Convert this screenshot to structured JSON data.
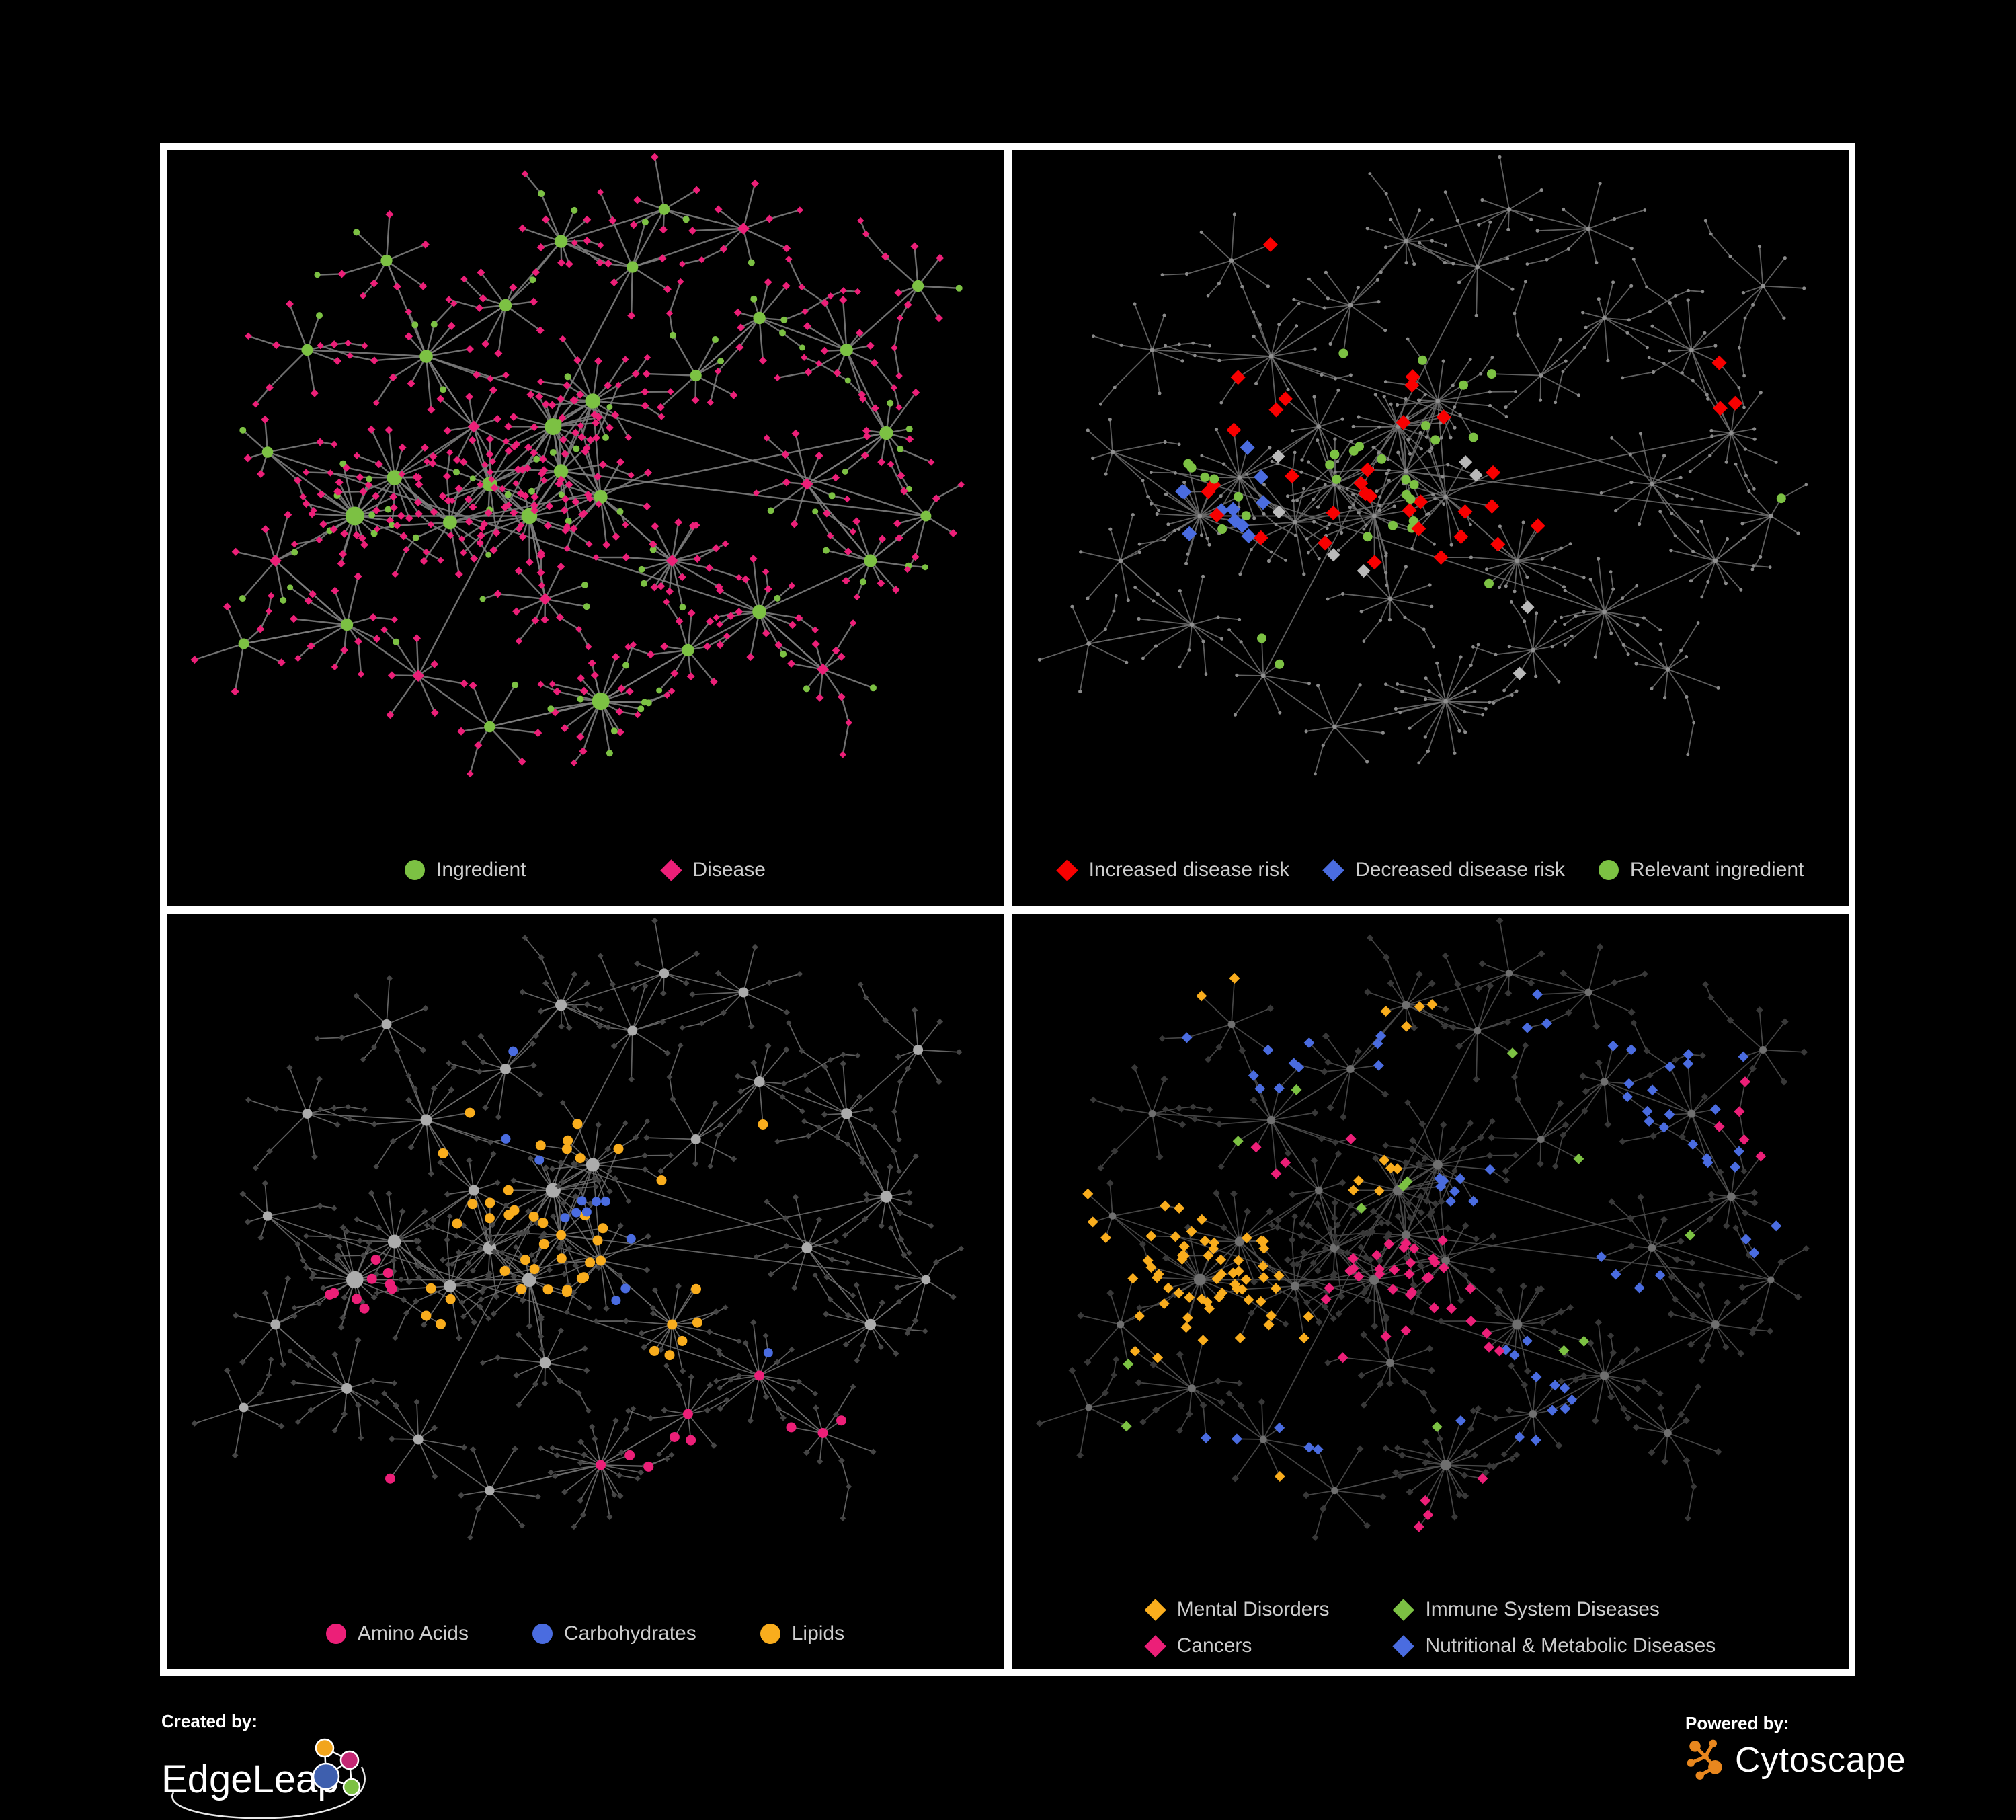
{
  "page": {
    "background": "#000000",
    "frame_color": "#ffffff"
  },
  "colors": {
    "green": "#7CC143",
    "pink": "#EC1F78",
    "red": "#F80000",
    "blue": "#4A6CE0",
    "orange": "#F9AD1D",
    "grayLight": "#B9B9B9"
  },
  "panels": [
    {
      "id": "ingredient-disease",
      "legend": [
        {
          "label": "Ingredient",
          "shape": "circle",
          "color": "green"
        },
        {
          "label": "Disease",
          "shape": "diamond",
          "color": "pink"
        }
      ],
      "style": {
        "seed": 101,
        "edge": "#7c7c7c",
        "edgeW": 2.4,
        "defaults": {
          "hub": {
            "shape": "circle",
            "color": "green",
            "size": 6.5,
            "k": 0.3,
            "max": 14,
            "altProb": 0.1,
            "altShape": "diamond",
            "altColor": "pink",
            "altSize": 9
          },
          "leaf": {
            "shape": "diamond",
            "color": "pink",
            "size": 6,
            "altProb": 0.16,
            "altShape": "circle",
            "altColor": "green",
            "altSize": 5
          },
          "sub": {
            "shape": "diamond",
            "color": "pink",
            "size": 5.2,
            "altProb": 0.1,
            "altShape": "circle",
            "altColor": "green",
            "altSize": 4.5
          }
        },
        "highlights": []
      }
    },
    {
      "id": "disease-risk",
      "legend": [
        {
          "label": "Increased disease risk",
          "shape": "diamond",
          "color": "red"
        },
        {
          "label": "Decreased disease risk",
          "shape": "diamond",
          "color": "blue"
        },
        {
          "label": "Relevant ingredient",
          "shape": "circle",
          "color": "green"
        }
      ],
      "style": {
        "seed": 202,
        "edge": "#696969",
        "edgeW": 1.8,
        "defaults": {
          "hub": {
            "shape": "circle",
            "color": "#909090",
            "size": 3.4
          },
          "leaf": {
            "shape": "circle",
            "color": "#8a8a8a",
            "size": 2.6
          },
          "sub": {
            "shape": "circle",
            "color": "#8a8a8a",
            "size": 2.4
          }
        },
        "highlights": [
          {
            "shape": "diamond",
            "color": "red",
            "size": 11,
            "count": 34,
            "regions": [
              [
                0.42,
                0.5,
                0.2
              ],
              [
                0.3,
                0.42,
                0.1
              ],
              [
                0.58,
                0.6,
                0.12
              ],
              [
                0.47,
                0.68,
                0.08
              ],
              [
                0.75,
                0.86,
                0.05
              ],
              [
                0.8,
                0.8,
                0.045
              ],
              [
                0.87,
                0.35,
                0.04
              ],
              [
                0.33,
                0.12,
                0.035
              ]
            ]
          },
          {
            "shape": "diamond",
            "color": "blue",
            "size": 11,
            "count": 11,
            "regions": [
              [
                0.235,
                0.52,
                0.075
              ],
              [
                0.26,
                0.45,
                0.04
              ],
              [
                0.915,
                0.175,
                0.04
              ]
            ]
          },
          {
            "shape": "diamond",
            "color": "grayLight",
            "size": 10,
            "count": 8,
            "regions": [
              [
                0.22,
                0.4,
                0.045
              ],
              [
                0.33,
                0.5,
                0.05
              ],
              [
                0.4,
                0.62,
                0.045
              ],
              [
                0.545,
                0.5,
                0.04
              ],
              [
                0.6,
                0.72,
                0.04
              ],
              [
                0.635,
                0.78,
                0.035
              ]
            ]
          },
          {
            "shape": "circle",
            "color": "green",
            "size": 7,
            "count": 32,
            "regions": [
              [
                0.45,
                0.45,
                0.22
              ],
              [
                0.25,
                0.5,
                0.1
              ],
              [
                0.6,
                0.68,
                0.1
              ],
              [
                0.17,
                0.33,
                0.05
              ],
              [
                0.95,
                0.5,
                0.035
              ],
              [
                0.3,
                0.75,
                0.045
              ],
              [
                0.86,
                0.87,
                0.05
              ],
              [
                0.17,
                0.6,
                0.045
              ]
            ]
          }
        ]
      }
    },
    {
      "id": "nutrient-classes",
      "legend": [
        {
          "label": "Amino Acids",
          "shape": "circle",
          "color": "pink"
        },
        {
          "label": "Carbohydrates",
          "shape": "circle",
          "color": "blue"
        },
        {
          "label": "Lipids",
          "shape": "circle",
          "color": "orange"
        }
      ],
      "style": {
        "seed": 303,
        "edge": "#6d6d6d",
        "edgeW": 1.7,
        "defaults": {
          "hub": {
            "shape": "circle",
            "color": "#acacac",
            "size": 5.5,
            "k": 0.28,
            "max": 13
          },
          "leaf": {
            "shape": "diamond",
            "color": "#454545",
            "size": 4.8
          },
          "sub": {
            "shape": "diamond",
            "color": "#454545",
            "size": 4.4
          }
        },
        "highlights": [
          {
            "shape": "circle",
            "color": "orange",
            "size": 7.5,
            "count": 46,
            "regions": [
              [
                0.47,
                0.28,
                0.1
              ],
              [
                0.43,
                0.5,
                0.1
              ],
              [
                0.52,
                0.55,
                0.08
              ],
              [
                0.63,
                0.66,
                0.055
              ],
              [
                0.33,
                0.3,
                0.06
              ],
              [
                0.5,
                0.08,
                0.025
              ],
              [
                0.68,
                0.57,
                0.06
              ],
              [
                0.3,
                0.6,
                0.05
              ],
              [
                0.6,
                0.45,
                0.06
              ],
              [
                0.75,
                0.3,
                0.035
              ]
            ]
          },
          {
            "shape": "circle",
            "color": "pink",
            "size": 7.5,
            "count": 20,
            "regions": [
              [
                0.1,
                0.63,
                0.05
              ],
              [
                0.16,
                0.17,
                0.05
              ],
              [
                0.3,
                0.3,
                0.04
              ],
              [
                0.22,
                0.56,
                0.045
              ],
              [
                0.47,
                0.78,
                0.045
              ],
              [
                0.55,
                0.85,
                0.05
              ],
              [
                0.63,
                0.8,
                0.045
              ],
              [
                0.72,
                0.72,
                0.05
              ],
              [
                0.78,
                0.78,
                0.045
              ],
              [
                0.4,
                0.87,
                0.04
              ],
              [
                0.28,
                0.87,
                0.035
              ],
              [
                0.85,
                0.3,
                0.035
              ],
              [
                0.53,
                0.64,
                0.035
              ]
            ]
          },
          {
            "shape": "circle",
            "color": "blue",
            "size": 7,
            "count": 13,
            "regions": [
              [
                0.02,
                0.28,
                0.025
              ],
              [
                0.42,
                0.35,
                0.035
              ],
              [
                0.52,
                0.47,
                0.05
              ],
              [
                0.55,
                0.52,
                0.045
              ],
              [
                0.73,
                0.63,
                0.035
              ],
              [
                0.42,
                0.2,
                0.025
              ],
              [
                0.52,
                0.57,
                0.035
              ],
              [
                0.88,
                0.8,
                0.03
              ]
            ]
          }
        ]
      }
    },
    {
      "id": "disease-classes",
      "legend": [
        {
          "label": "Mental Disorders",
          "shape": "diamond",
          "color": "orange"
        },
        {
          "label": "Immune System Diseases",
          "shape": "diamond",
          "color": "green"
        },
        {
          "label": "Cancers",
          "shape": "diamond",
          "color": "pink"
        },
        {
          "label": "Nutritional & Metabolic Diseases",
          "shape": "diamond",
          "color": "blue"
        }
      ],
      "style": {
        "seed": 404,
        "edge": "#4d4d4d",
        "edgeW": 1.7,
        "defaults": {
          "hub": {
            "shape": "circle",
            "color": "#6f6f6f",
            "size": 4.2,
            "k": 0.18,
            "max": 9
          },
          "leaf": {
            "shape": "diamond",
            "color": "#383838",
            "size": 5.4
          },
          "sub": {
            "shape": "diamond",
            "color": "#383838",
            "size": 5
          }
        },
        "highlights": [
          {
            "shape": "diamond",
            "color": "orange",
            "size": 8,
            "count": 75,
            "regions": [
              [
                0.185,
                0.55,
                0.13
              ],
              [
                0.26,
                0.52,
                0.06
              ],
              [
                0.1,
                0.45,
                0.05
              ],
              [
                0.3,
                0.62,
                0.05
              ],
              [
                0.47,
                0.12,
                0.035
              ],
              [
                0.24,
                0.1,
                0.03
              ],
              [
                0.43,
                0.4,
                0.04
              ],
              [
                0.1,
                0.85,
                0.04
              ],
              [
                0.3,
                0.88,
                0.03
              ],
              [
                0.55,
                0.7,
                0.03
              ]
            ]
          },
          {
            "shape": "diamond",
            "color": "pink",
            "size": 8,
            "count": 48,
            "regions": [
              [
                0.45,
                0.6,
                0.1
              ],
              [
                0.5,
                0.55,
                0.08
              ],
              [
                0.4,
                0.68,
                0.06
              ],
              [
                0.55,
                0.64,
                0.05
              ],
              [
                0.9,
                0.3,
                0.06
              ],
              [
                0.33,
                0.35,
                0.05
              ],
              [
                0.42,
                0.3,
                0.04
              ],
              [
                0.6,
                0.88,
                0.04
              ],
              [
                0.5,
                0.92,
                0.03
              ],
              [
                0.75,
                0.9,
                0.035
              ],
              [
                0.97,
                0.6,
                0.025
              ]
            ]
          },
          {
            "shape": "diamond",
            "color": "blue",
            "size": 8,
            "count": 65,
            "regions": [
              [
                0.6,
                0.73,
                0.09
              ],
              [
                0.8,
                0.22,
                0.1
              ],
              [
                0.88,
                0.32,
                0.06
              ],
              [
                0.7,
                0.42,
                0.06
              ],
              [
                0.75,
                0.55,
                0.05
              ],
              [
                0.15,
                0.12,
                0.08
              ],
              [
                0.3,
                0.2,
                0.06
              ],
              [
                0.05,
                0.3,
                0.04
              ],
              [
                0.35,
                0.78,
                0.05
              ],
              [
                0.25,
                0.8,
                0.045
              ],
              [
                0.45,
                0.2,
                0.04
              ],
              [
                0.65,
                0.15,
                0.05
              ],
              [
                0.92,
                0.5,
                0.04
              ],
              [
                0.55,
                0.4,
                0.04
              ]
            ]
          },
          {
            "shape": "diamond",
            "color": "green",
            "size": 8,
            "count": 13,
            "regions": [
              [
                0.5,
                0.5,
                0.55
              ]
            ]
          }
        ]
      }
    }
  ],
  "footer": {
    "created_by": "Created by:",
    "created_brand": "EdgeLeap",
    "powered_by": "Powered by:",
    "powered_brand": "Cytoscape",
    "cytoscape_orange": "#E8871E",
    "edgeleap_node_colors": {
      "orange": "#F2A51C",
      "magenta": "#C42874",
      "blue": "#3E5FAE",
      "green": "#7CC143"
    }
  }
}
